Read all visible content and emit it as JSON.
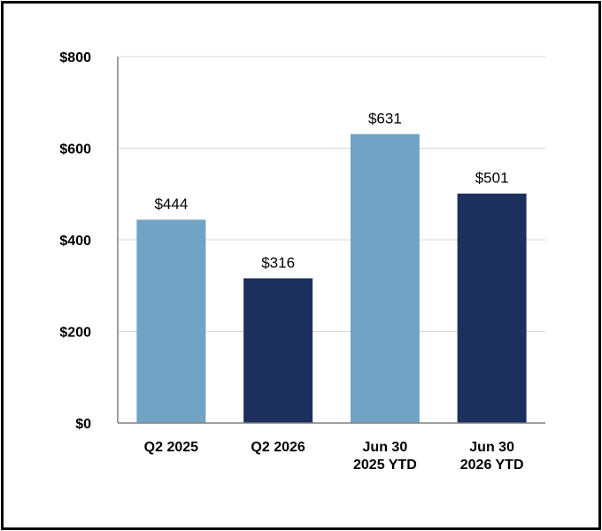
{
  "chart_data": {
    "type": "bar",
    "title": "",
    "xlabel": "",
    "ylabel": "",
    "categories": [
      [
        "Q2 2025"
      ],
      [
        "Q2 2026"
      ],
      [
        "Jun 30",
        "2025 YTD"
      ],
      [
        "Jun 30",
        "2026 YTD"
      ]
    ],
    "values": [
      444,
      316,
      631,
      501
    ],
    "data_labels": [
      "$444",
      "$316",
      "$631",
      "$501"
    ],
    "bar_colors": [
      "#71a3c5",
      "#1d2f5c",
      "#71a3c5",
      "#1d2f5c"
    ],
    "ylim": [
      0,
      800
    ],
    "yticks": [
      0,
      200,
      400,
      600,
      800
    ],
    "ytick_labels": [
      "$0",
      "$200",
      "$400",
      "$600",
      "$800"
    ],
    "grid": true,
    "gridline_color": "#d9d9d9",
    "axis_color": "#808080",
    "legend": "none"
  }
}
